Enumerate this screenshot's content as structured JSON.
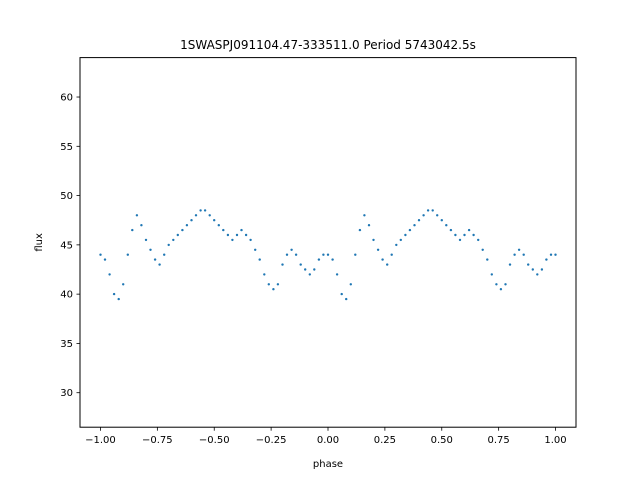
{
  "chart_data": {
    "type": "scatter",
    "title": "1SWASPJ091104.47-333511.0 Period 5743042.5s",
    "xlabel": "phase",
    "ylabel": "flux",
    "xlim": [
      -1.09,
      1.09
    ],
    "ylim": [
      26.5,
      64.0
    ],
    "xticks": [
      -1.0,
      -0.75,
      -0.5,
      -0.25,
      0.0,
      0.25,
      0.5,
      0.75,
      1.0
    ],
    "xtick_labels": [
      "−1.00",
      "−0.75",
      "−0.50",
      "−0.25",
      "0.00",
      "0.25",
      "0.50",
      "0.75",
      "1.00"
    ],
    "yticks": [
      30,
      35,
      40,
      45,
      50,
      55,
      60
    ],
    "ytick_labels": [
      "30",
      "35",
      "40",
      "45",
      "50",
      "55",
      "60"
    ],
    "grid": false,
    "marker_color": "#1f77b4",
    "series": [
      {
        "x": [
          -1.0,
          -0.98,
          -0.96,
          -0.94,
          -0.92,
          -0.9,
          -0.88,
          -0.86,
          -0.84,
          -0.82,
          -0.8,
          -0.78,
          -0.76,
          -0.74,
          -0.72,
          -0.7,
          -0.68,
          -0.66,
          -0.64,
          -0.62,
          -0.6,
          -0.58,
          -0.56,
          -0.54,
          -0.52,
          -0.5,
          -0.48,
          -0.46,
          -0.44,
          -0.42,
          -0.4,
          -0.38,
          -0.36,
          -0.34,
          -0.32,
          -0.3,
          -0.28,
          -0.26,
          -0.24,
          -0.22,
          -0.2,
          -0.18,
          -0.16,
          -0.14,
          -0.12,
          -0.1,
          -0.08,
          -0.06,
          -0.04,
          -0.02,
          0.0,
          0.02,
          0.04,
          0.06,
          0.08,
          0.1,
          0.12,
          0.14,
          0.16,
          0.18,
          0.2,
          0.22,
          0.24,
          0.26,
          0.28,
          0.3,
          0.32,
          0.34,
          0.36,
          0.38,
          0.4,
          0.42,
          0.44,
          0.46,
          0.48,
          0.5,
          0.52,
          0.54,
          0.56,
          0.58,
          0.6,
          0.62,
          0.64,
          0.66,
          0.68,
          0.7,
          0.72,
          0.74,
          0.76,
          0.78,
          0.8,
          0.82,
          0.84,
          0.86,
          0.88,
          0.9,
          0.92,
          0.94,
          0.96,
          0.98,
          1.0
        ],
        "y": [
          44.0,
          43.5,
          42.0,
          40.0,
          39.5,
          41.0,
          44.0,
          46.5,
          48.0,
          47.0,
          45.5,
          44.5,
          43.5,
          43.0,
          44.0,
          45.0,
          45.5,
          46.0,
          46.5,
          47.0,
          47.5,
          48.0,
          48.5,
          48.5,
          48.0,
          47.5,
          47.0,
          46.5,
          46.0,
          45.5,
          46.0,
          46.5,
          46.0,
          45.5,
          44.5,
          43.5,
          42.0,
          41.0,
          40.5,
          41.0,
          43.0,
          44.0,
          44.5,
          44.0,
          43.0,
          42.5,
          42.0,
          42.5,
          43.5,
          44.0,
          44.0,
          43.5,
          42.0,
          40.0,
          39.5,
          41.0,
          44.0,
          46.5,
          48.0,
          47.0,
          45.5,
          44.5,
          43.5,
          43.0,
          44.0,
          45.0,
          45.5,
          46.0,
          46.5,
          47.0,
          47.5,
          48.0,
          48.5,
          48.5,
          48.0,
          47.5,
          47.0,
          46.5,
          46.0,
          45.5,
          46.0,
          46.5,
          46.0,
          45.5,
          44.5,
          43.5,
          42.0,
          41.0,
          40.5,
          41.0,
          43.0,
          44.0,
          44.5,
          44.0,
          43.0,
          42.5,
          42.0,
          42.5,
          43.5,
          44.0,
          44.0
        ]
      }
    ]
  }
}
